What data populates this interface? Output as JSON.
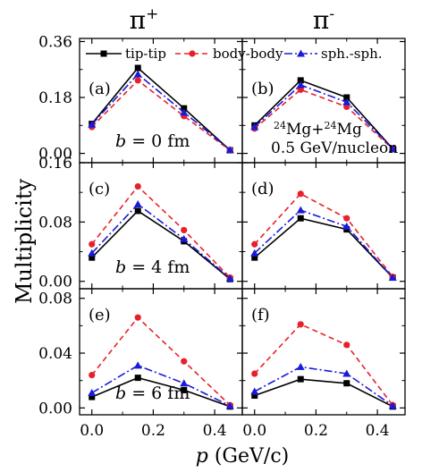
{
  "chart_data": {
    "type": "line",
    "column_titles": [
      "π",
      "π"
    ],
    "column_superscripts": [
      "+",
      "-"
    ],
    "ylabel": "Multiplicity",
    "xlabel_var": "p",
    "xlabel_unit": " (GeV/c)",
    "x_ticks": [
      "0.0",
      "0.2",
      "0.4"
    ],
    "x_tick_values": [
      0.0,
      0.2,
      0.4
    ],
    "xlim": [
      -0.04,
      0.49
    ],
    "x": [
      0.0,
      0.15,
      0.3,
      0.45
    ],
    "legend": [
      {
        "name": "tip-tip",
        "color": "#000000",
        "dash": "solid",
        "marker": "square"
      },
      {
        "name": "body-body",
        "color": "#e8202a",
        "dash": "dashed",
        "marker": "circle"
      },
      {
        "name": "sph.-sph.",
        "color": "#1a1ad8",
        "dash": "dashdot",
        "marker": "triangle"
      }
    ],
    "system": {
      "a": "24",
      "A": "Mg",
      "plus": "+",
      "b": "24",
      "B": "Mg",
      "energy": "0.5 GeV/nucleon"
    },
    "rows": [
      {
        "b_var": "b",
        "b_text": " = 0 fm",
        "ylim": [
          -0.03,
          0.37
        ],
        "y_ticks": [
          "0.00",
          "0.18",
          "0.36"
        ],
        "y_tick_values": [
          0.0,
          0.18,
          0.36
        ],
        "panels": [
          {
            "label": "(a)",
            "series": [
              {
                "name": "tip-tip",
                "values": [
                  0.095,
                  0.275,
                  0.145,
                  0.01
                ]
              },
              {
                "name": "body-body",
                "values": [
                  0.085,
                  0.235,
                  0.12,
                  0.01
                ]
              },
              {
                "name": "sph.-sph.",
                "values": [
                  0.093,
                  0.255,
                  0.132,
                  0.011
                ]
              }
            ]
          },
          {
            "label": "(b)",
            "series": [
              {
                "name": "tip-tip",
                "values": [
                  0.09,
                  0.235,
                  0.18,
                  0.015
                ]
              },
              {
                "name": "body-body",
                "values": [
                  0.08,
                  0.205,
                  0.15,
                  0.014
                ]
              },
              {
                "name": "sph.-sph.",
                "values": [
                  0.085,
                  0.22,
                  0.165,
                  0.015
                ]
              }
            ]
          }
        ]
      },
      {
        "b_var": "b",
        "b_text": " = 4 fm",
        "ylim": [
          -0.01,
          0.16
        ],
        "y_ticks": [
          "0.00",
          "0.08",
          "0.16"
        ],
        "y_tick_values": [
          0.0,
          0.08,
          0.16
        ],
        "panels": [
          {
            "label": "(c)",
            "series": [
              {
                "name": "tip-tip",
                "values": [
                  0.032,
                  0.095,
                  0.054,
                  0.003
                ]
              },
              {
                "name": "body-body",
                "values": [
                  0.05,
                  0.128,
                  0.069,
                  0.005
                ]
              },
              {
                "name": "sph.-sph.",
                "values": [
                  0.038,
                  0.104,
                  0.057,
                  0.004
                ]
              }
            ]
          },
          {
            "label": "(d)",
            "series": [
              {
                "name": "tip-tip",
                "values": [
                  0.032,
                  0.085,
                  0.07,
                  0.005
                ]
              },
              {
                "name": "body-body",
                "values": [
                  0.05,
                  0.118,
                  0.085,
                  0.006
                ]
              },
              {
                "name": "sph.-sph.",
                "values": [
                  0.038,
                  0.096,
                  0.074,
                  0.005
                ]
              }
            ]
          }
        ]
      },
      {
        "b_var": "b",
        "b_text": " = 6 fm",
        "ylim": [
          -0.005,
          0.087
        ],
        "y_ticks": [
          "0.00",
          "0.04",
          "0.08"
        ],
        "y_tick_values": [
          0.0,
          0.04,
          0.08
        ],
        "panels": [
          {
            "label": "(e)",
            "series": [
              {
                "name": "tip-tip",
                "values": [
                  0.008,
                  0.022,
                  0.013,
                  0.001
                ]
              },
              {
                "name": "body-body",
                "values": [
                  0.024,
                  0.066,
                  0.034,
                  0.002
                ]
              },
              {
                "name": "sph.-sph.",
                "values": [
                  0.011,
                  0.031,
                  0.018,
                  0.0015
                ]
              }
            ]
          },
          {
            "label": "(f)",
            "series": [
              {
                "name": "tip-tip",
                "values": [
                  0.009,
                  0.021,
                  0.018,
                  0.001
                ]
              },
              {
                "name": "body-body",
                "values": [
                  0.025,
                  0.061,
                  0.046,
                  0.002
                ]
              },
              {
                "name": "sph.-sph.",
                "values": [
                  0.012,
                  0.03,
                  0.025,
                  0.0015
                ]
              }
            ]
          }
        ]
      }
    ]
  }
}
